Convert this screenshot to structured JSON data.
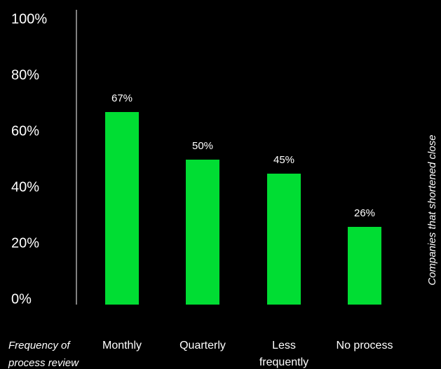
{
  "chart_data": {
    "type": "bar",
    "categories": [
      "Monthly",
      "Quarterly",
      "Less frequently",
      "No process"
    ],
    "category_lines": [
      [
        "Monthly"
      ],
      [
        "Quarterly"
      ],
      [
        "Less",
        "frequently"
      ],
      [
        "No process"
      ]
    ],
    "values": [
      67,
      50,
      45,
      26
    ],
    "value_labels": [
      "67%",
      "50%",
      "45%",
      "26%"
    ],
    "xlabel_lines": [
      "Frequency of",
      "process review"
    ],
    "ylabel": "Companies that shortened close",
    "ylim": [
      0,
      100
    ],
    "yticks": [
      0,
      20,
      40,
      60,
      80,
      100
    ],
    "ytick_labels": [
      "0%",
      "20%",
      "40%",
      "60%",
      "80%",
      "100%"
    ],
    "grid": false,
    "colors": {
      "bar": "#00dd33",
      "background": "#000000",
      "text": "#ffffff",
      "axis": "#ffffff"
    }
  }
}
